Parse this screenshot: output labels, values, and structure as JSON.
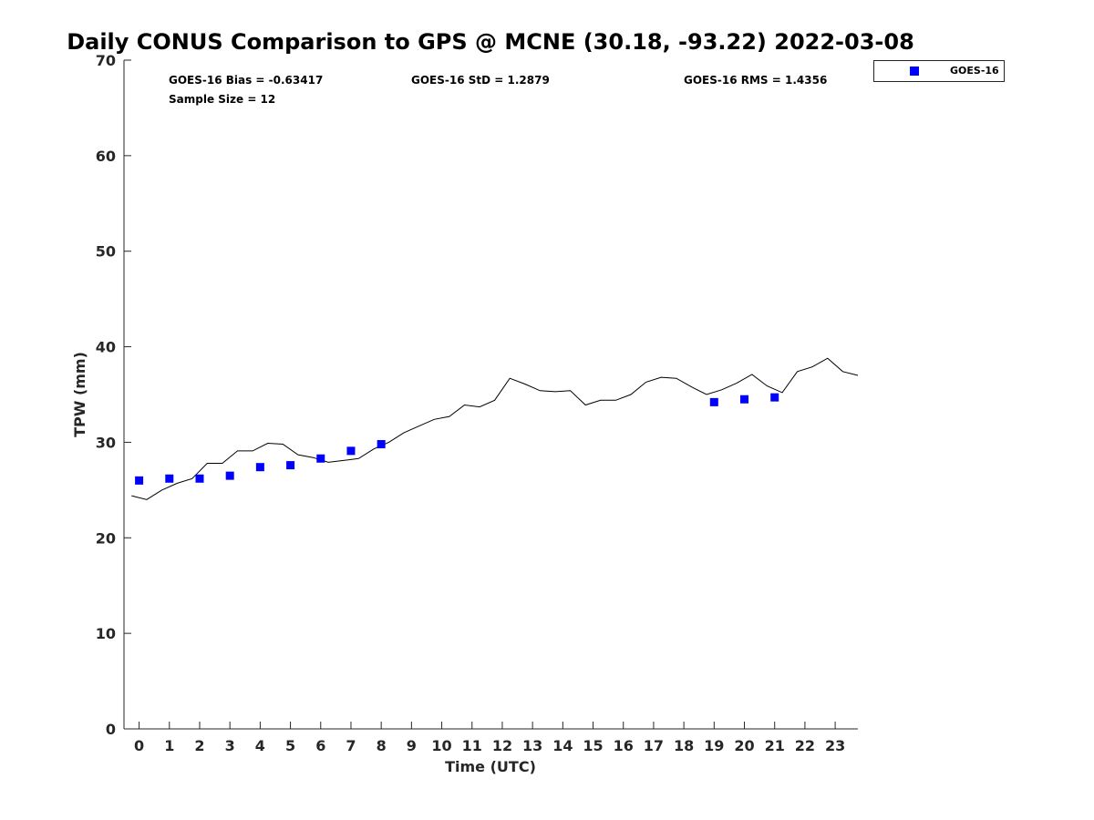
{
  "chart_data": {
    "type": "scatter",
    "title": "Daily CONUS Comparison to GPS @ MCNE (30.18, -93.22) 2022-03-08",
    "xlabel": "Time (UTC)",
    "ylabel": "TPW (mm)",
    "xlim": [
      -0.5,
      23.75
    ],
    "ylim": [
      0,
      70
    ],
    "xticks": [
      "0",
      "1",
      "2",
      "3",
      "4",
      "5",
      "6",
      "7",
      "8",
      "9",
      "10",
      "11",
      "12",
      "13",
      "14",
      "15",
      "16",
      "17",
      "18",
      "19",
      "20",
      "21",
      "22",
      "23"
    ],
    "yticks": [
      "0",
      "10",
      "20",
      "30",
      "40",
      "50",
      "60",
      "70"
    ],
    "grid": false,
    "legend_position": "top-right",
    "stats": {
      "bias": "GOES-16 Bias = -0.63417",
      "std": "GOES-16 StD = 1.2879",
      "rms": "GOES-16 RMS = 1.4356",
      "sample": "Sample Size = 12"
    },
    "series": [
      {
        "name": "GOES-16",
        "kind": "scatter",
        "marker": "square",
        "color": "#0000ff",
        "x": [
          0,
          1,
          2,
          3,
          4,
          5,
          6,
          7,
          8,
          19,
          20,
          21
        ],
        "y": [
          26.0,
          26.2,
          26.2,
          26.5,
          27.4,
          27.6,
          28.3,
          29.1,
          29.8,
          34.2,
          34.5,
          34.7
        ]
      },
      {
        "kind": "line",
        "color": "#000000",
        "x": [
          -0.25,
          0.25,
          0.75,
          1.25,
          1.75,
          2.25,
          2.75,
          3.25,
          3.75,
          4.25,
          4.75,
          5.25,
          5.75,
          6.25,
          6.75,
          7.25,
          7.75,
          8.25,
          8.75,
          9.25,
          9.75,
          10.25,
          10.75,
          11.25,
          11.75,
          12.25,
          12.75,
          13.25,
          13.75,
          14.25,
          14.75,
          15.25,
          15.75,
          16.25,
          16.75,
          17.25,
          17.75,
          18.25,
          18.75,
          19.25,
          19.75,
          20.25,
          20.75,
          21.25,
          21.75,
          22.25,
          22.75,
          23.25,
          23.75
        ],
        "y": [
          24.4,
          24.0,
          25.0,
          25.7,
          26.2,
          27.8,
          27.8,
          29.1,
          29.1,
          29.9,
          29.8,
          28.7,
          28.4,
          27.9,
          28.1,
          28.3,
          29.3,
          30.0,
          31.0,
          31.7,
          32.4,
          32.7,
          33.9,
          33.7,
          34.4,
          36.7,
          36.1,
          35.4,
          35.3,
          35.4,
          33.9,
          34.4,
          34.4,
          35.0,
          36.3,
          36.8,
          36.7,
          35.8,
          35.0,
          35.5,
          36.2,
          37.1,
          35.9,
          35.2,
          37.4,
          37.9,
          38.8,
          37.4,
          37.0
        ]
      }
    ]
  }
}
